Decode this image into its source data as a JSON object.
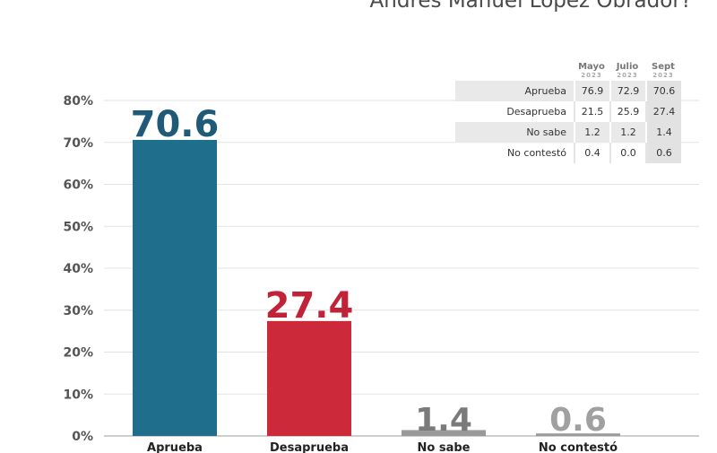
{
  "title": "Andrés Manuel López Obrador?",
  "chart_data": {
    "type": "bar",
    "categories": [
      "Aprueba",
      "Desaprueba",
      "No sabe",
      "No contestó"
    ],
    "values": [
      70.6,
      27.4,
      1.4,
      0.6
    ],
    "value_labels": [
      "70.6",
      "27.4",
      "1.4",
      "0.6"
    ],
    "colors": [
      "#1f6e8c",
      "#cc2a3b",
      "#9a9a9a",
      "#9a9a9a"
    ],
    "ylim": [
      0,
      80
    ],
    "yticks": [
      "0%",
      "10%",
      "20%",
      "30%",
      "40%",
      "50%",
      "60%",
      "70%",
      "80%"
    ],
    "grid": true,
    "xlabel": "",
    "ylabel": ""
  },
  "table": {
    "columns": [
      {
        "month": "Mayo",
        "year": "2023"
      },
      {
        "month": "Julio",
        "year": "2023"
      },
      {
        "month": "Sept",
        "year": "2023"
      }
    ],
    "rows": [
      {
        "label": "Aprueba",
        "values": [
          "76.9",
          "72.9",
          "70.6"
        ]
      },
      {
        "label": "Desaprueba",
        "values": [
          "21.5",
          "25.9",
          "27.4"
        ]
      },
      {
        "label": "No sabe",
        "values": [
          "1.2",
          "1.2",
          "1.4"
        ]
      },
      {
        "label": "No contestó",
        "values": [
          "0.4",
          "0.0",
          "0.6"
        ]
      }
    ]
  }
}
